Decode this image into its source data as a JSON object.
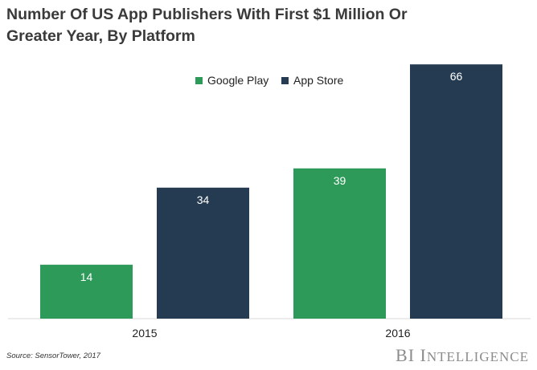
{
  "title_lines": [
    "Number Of US App Publishers With First $1 Million Or",
    "Greater Year, By Platform"
  ],
  "source": "Source: SensorTower, 2017",
  "brand": {
    "prefix": "BI I",
    "rest": "NTELLIGENCE"
  },
  "colors": {
    "google_play": "#2e9a59",
    "app_store": "#253b51",
    "baseline": "#d9d9d9",
    "tick_text": "#222222",
    "bar_label": "#ffffff"
  },
  "chart_data": {
    "type": "bar",
    "title": "Number Of US App Publishers With First $1 Million Or Greater Year, By Platform",
    "categories": [
      "2015",
      "2016"
    ],
    "series": [
      {
        "name": "Google Play",
        "values": [
          14,
          39
        ]
      },
      {
        "name": "App Store",
        "values": [
          34,
          66
        ]
      }
    ],
    "ylim": [
      0,
      70
    ],
    "grid": false,
    "legend": "top-center",
    "xlabel": "",
    "ylabel": ""
  }
}
